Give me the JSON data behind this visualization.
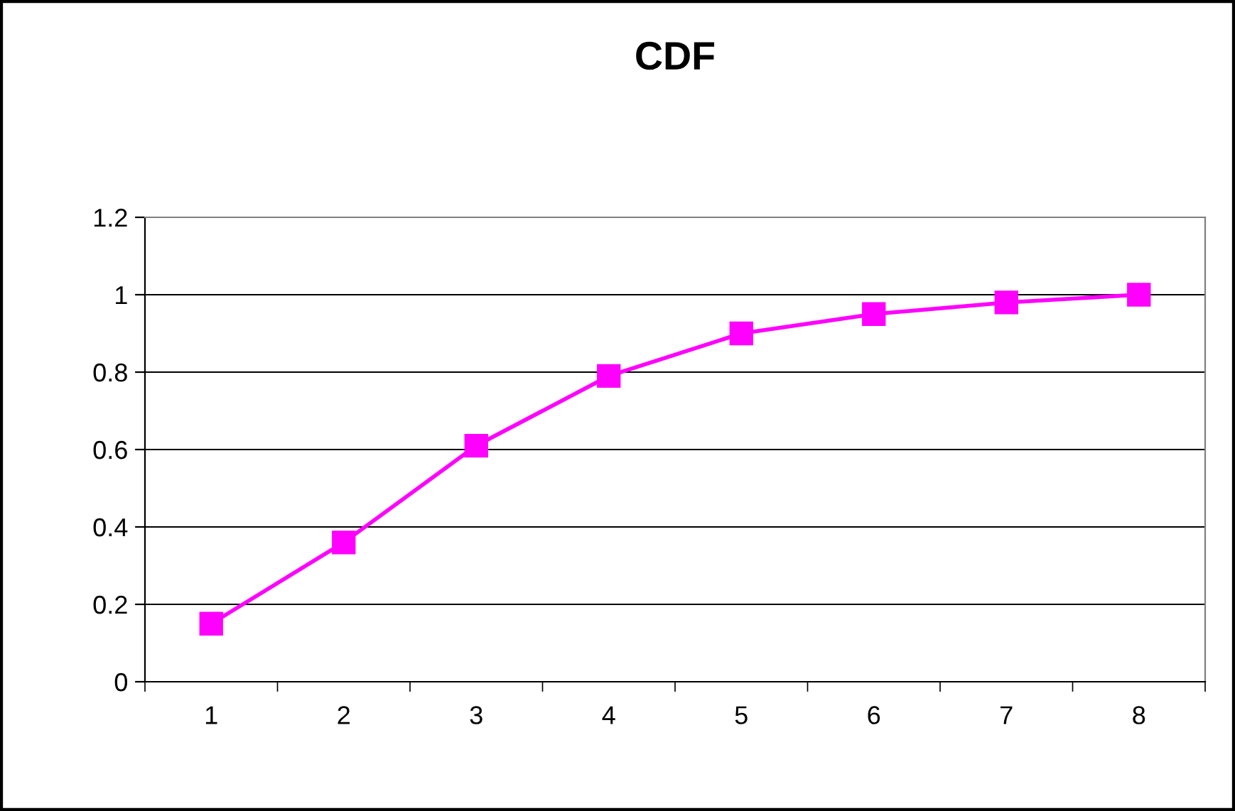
{
  "chart_data": {
    "type": "line",
    "title": "CDF",
    "categories": [
      "1",
      "2",
      "3",
      "4",
      "5",
      "6",
      "7",
      "8"
    ],
    "series": [
      {
        "color": "#ff00ff",
        "values": [
          0.15,
          0.36,
          0.61,
          0.79,
          0.9,
          0.95,
          0.98,
          1.0
        ]
      }
    ],
    "ylim": [
      0,
      1.2
    ],
    "yticks": [
      0,
      0.2,
      0.4,
      0.6,
      0.8,
      1,
      1.2
    ],
    "grid": "y",
    "marker": "square",
    "line_style": "solid",
    "legend": false
  }
}
